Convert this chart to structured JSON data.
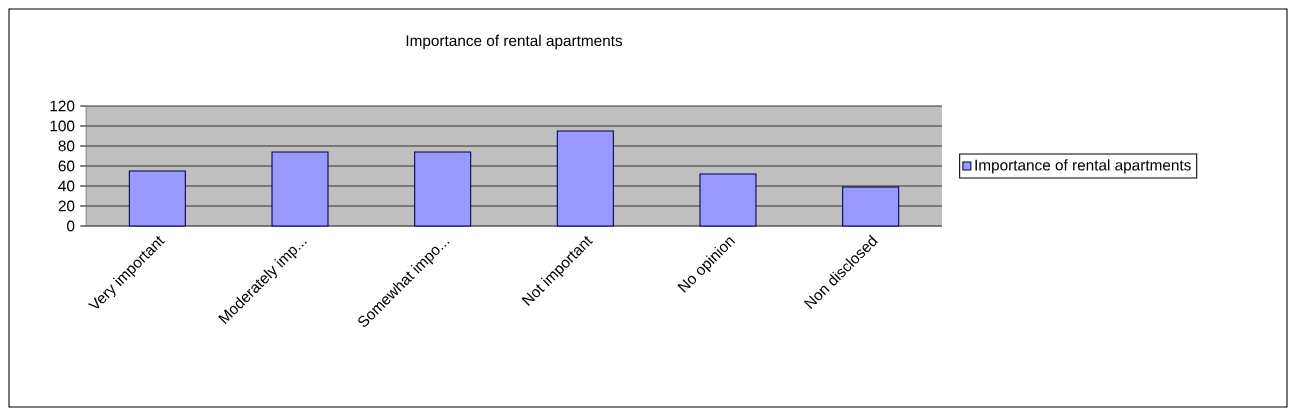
{
  "chart_data": {
    "type": "bar",
    "title": "Importance of rental apartments",
    "categories": [
      "Very important",
      "Moderately imp...",
      "Somewhat impo...",
      "Not important",
      "No opinion",
      "Non disclosed"
    ],
    "series": [
      {
        "name": "Importance of rental apartments",
        "color": "#9999ff",
        "values": [
          55,
          74,
          74,
          95,
          52,
          39
        ]
      }
    ],
    "ylim": [
      0,
      120
    ],
    "yticks": [
      0,
      20,
      40,
      60,
      80,
      100,
      120
    ],
    "grid": "y",
    "legend": "right"
  }
}
